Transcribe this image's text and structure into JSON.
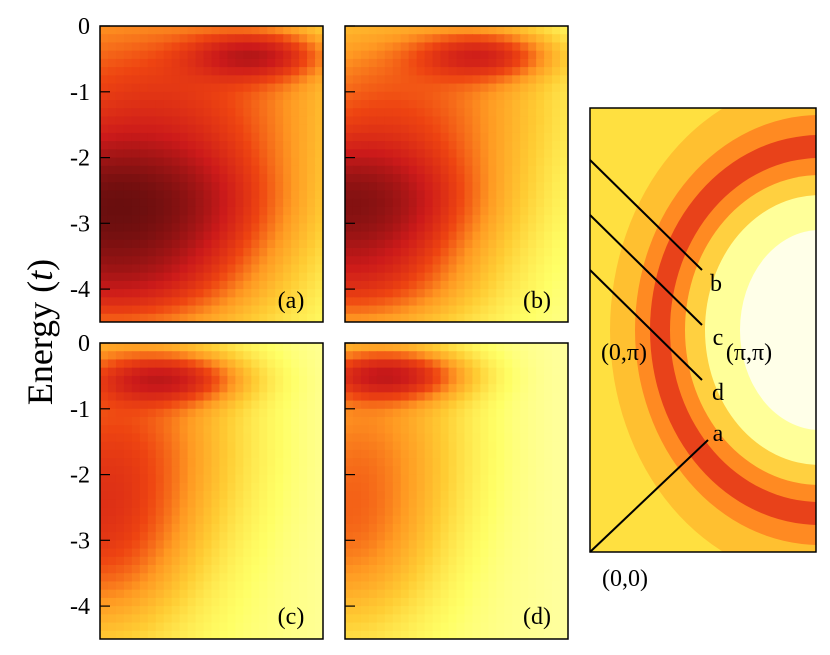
{
  "chart_data": {
    "type": "heatmap",
    "ylabel": "Energy (t)",
    "ylabel_text": "Energy (",
    "ylabel_unit": "t",
    "ylabel_close": ")",
    "ylim": [
      -4.5,
      0
    ],
    "yticks": [
      0,
      -1,
      -2,
      -3,
      -4
    ],
    "ytick_labels": [
      "0",
      "-1",
      "-2",
      "-3",
      "-4"
    ],
    "colormap": [
      "#ffffe0",
      "#ffff66",
      "#ffcc33",
      "#ff9922",
      "#ee4411",
      "#cc1a1a",
      "#7a1010",
      "#2a0808"
    ],
    "panels": [
      {
        "label": "(a)",
        "blobs": [
          {
            "x": 0.05,
            "y": -2.8,
            "rx": 0.55,
            "ry": 0.9,
            "intensity": 0.99
          },
          {
            "x": 0.2,
            "y": -2.6,
            "rx": 0.6,
            "ry": 1.3,
            "intensity": 0.55
          },
          {
            "x": 0.7,
            "y": -0.45,
            "rx": 0.28,
            "ry": 0.35,
            "intensity": 0.72
          },
          {
            "x": 0.35,
            "y": -1.0,
            "rx": 0.7,
            "ry": 1.3,
            "intensity": 0.45
          },
          {
            "x": 0.1,
            "y": -3.9,
            "rx": 0.5,
            "ry": 0.7,
            "intensity": 0.5
          }
        ],
        "background": 0.28
      },
      {
        "label": "(b)",
        "blobs": [
          {
            "x": 0.0,
            "y": -2.75,
            "rx": 0.45,
            "ry": 0.85,
            "intensity": 0.92
          },
          {
            "x": 0.15,
            "y": -2.5,
            "rx": 0.55,
            "ry": 1.3,
            "intensity": 0.45
          },
          {
            "x": 0.62,
            "y": -0.45,
            "rx": 0.28,
            "ry": 0.35,
            "intensity": 0.65
          },
          {
            "x": 0.3,
            "y": -1.0,
            "rx": 0.6,
            "ry": 1.2,
            "intensity": 0.38
          },
          {
            "x": 0.05,
            "y": -3.9,
            "rx": 0.45,
            "ry": 0.7,
            "intensity": 0.45
          }
        ],
        "background": 0.18
      },
      {
        "label": "(c)",
        "blobs": [
          {
            "x": 0.3,
            "y": -0.55,
            "rx": 0.3,
            "ry": 0.35,
            "intensity": 0.72
          },
          {
            "x": 0.1,
            "y": -1.5,
            "rx": 0.45,
            "ry": 1.6,
            "intensity": 0.5
          },
          {
            "x": 0.0,
            "y": -3.0,
            "rx": 0.35,
            "ry": 1.3,
            "intensity": 0.45
          }
        ],
        "background": 0.15
      },
      {
        "label": "(d)",
        "blobs": [
          {
            "x": 0.2,
            "y": -0.5,
            "rx": 0.3,
            "ry": 0.35,
            "intensity": 0.8
          },
          {
            "x": 0.1,
            "y": -1.5,
            "rx": 0.4,
            "ry": 1.6,
            "intensity": 0.35
          },
          {
            "x": 0.0,
            "y": -3.0,
            "rx": 0.35,
            "ry": 1.3,
            "intensity": 0.32
          }
        ],
        "background": 0.12
      }
    ],
    "fermi_surface": {
      "corner_labels": {
        "origin": "(0,0)",
        "zone_edge": "(0,π)",
        "zone_corner": "(π,π)"
      },
      "cuts": [
        {
          "label": "b"
        },
        {
          "label": "c"
        },
        {
          "label": "d"
        },
        {
          "label": "a"
        }
      ]
    }
  }
}
